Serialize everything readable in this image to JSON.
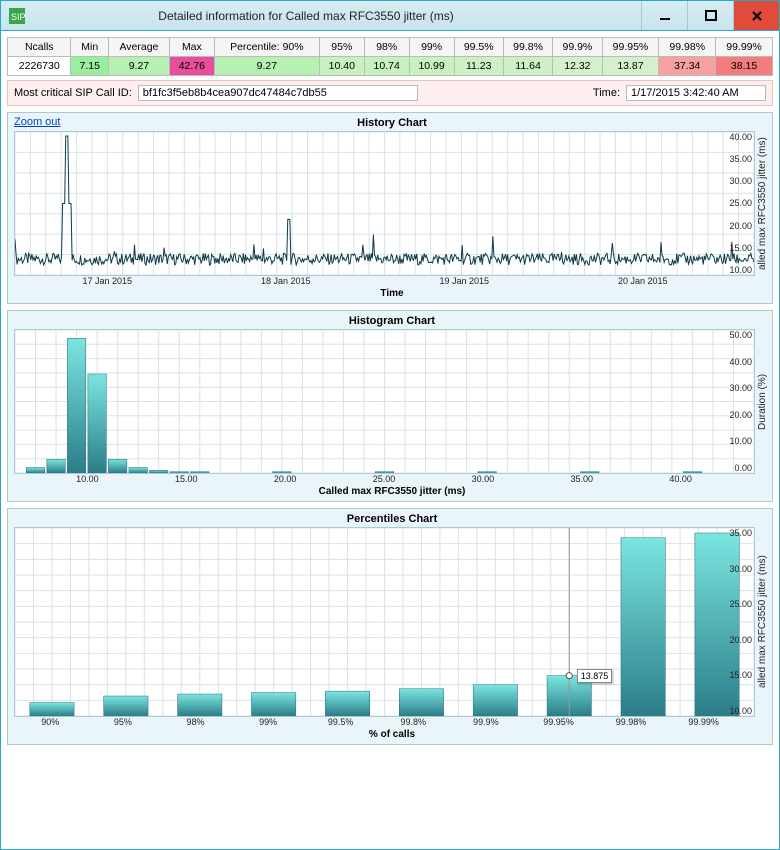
{
  "window": {
    "title": "Detailed information for Called max RFC3550 jitter (ms)"
  },
  "stats": {
    "headers": [
      "Ncalls",
      "Min",
      "Average",
      "Max",
      "Percentile: 90%",
      "95%",
      "98%",
      "99%",
      "99.5%",
      "99.8%",
      "99.9%",
      "99.95%",
      "99.98%",
      "99.99%"
    ],
    "values": [
      "2226730",
      "7.15",
      "9.27",
      "42.76",
      "9.27",
      "10.40",
      "10.74",
      "10.99",
      "11.23",
      "11.64",
      "12.32",
      "13.87",
      "37.34",
      "38.15"
    ],
    "cell_bg": [
      "#ffffff",
      "#9aef9e",
      "#b7f1b2",
      "#e84f9b",
      "#b7f1b2",
      "#c8f1c0",
      "#c8f1c0",
      "#c8f1c0",
      "#cdf1c5",
      "#cdf1c5",
      "#d4f1cc",
      "#d4f1cc",
      "#f7a1a1",
      "#f37d7d"
    ]
  },
  "info": {
    "call_id_label": "Most critical SIP Call ID:",
    "call_id": "bf1fc3f5eb8b4cea907dc47484c7db55",
    "time_label": "Time:",
    "time": "1/17/2015 3:42:40 AM"
  },
  "zoom_out": "Zoom out",
  "history": {
    "title": "History Chart",
    "xlabel": "Time",
    "ylabel": "alled max RFC3550 jitter (ms)",
    "xticks": [
      "17 Jan 2015",
      "18 Jan 2015",
      "19 Jan 2015",
      "20 Jan 2015"
    ],
    "yticks": [
      "40.00",
      "35.00",
      "30.00",
      "25.00",
      "20.00",
      "15.00",
      "10.00"
    ],
    "ymin": 7,
    "ymax": 43,
    "baseline": 11,
    "spike_x": 0.07,
    "spike_y": 42,
    "noise_amp": 3.0,
    "line_color": "#0d3b4a"
  },
  "histogram": {
    "title": "Histogram Chart",
    "xlabel": "Called max RFC3550 jitter (ms)",
    "ylabel": "Duration (%)",
    "xticks": [
      "10.00",
      "15.00",
      "20.00",
      "25.00",
      "30.00",
      "35.00",
      "40.00"
    ],
    "yticks": [
      "50.00",
      "40.00",
      "30.00",
      "20.00",
      "10.00",
      "0.00"
    ],
    "xmin": 7,
    "xmax": 43,
    "ymax": 52,
    "bins": [
      {
        "x": 8,
        "h": 2
      },
      {
        "x": 9,
        "h": 5
      },
      {
        "x": 10,
        "h": 49
      },
      {
        "x": 11,
        "h": 36
      },
      {
        "x": 12,
        "h": 5
      },
      {
        "x": 13,
        "h": 2
      },
      {
        "x": 14,
        "h": 1
      },
      {
        "x": 15,
        "h": 0.5
      },
      {
        "x": 16,
        "h": 0.5
      },
      {
        "x": 20,
        "h": 0.5
      },
      {
        "x": 25,
        "h": 0.5
      },
      {
        "x": 30,
        "h": 0.5
      },
      {
        "x": 35,
        "h": 0.5
      },
      {
        "x": 40,
        "h": 0.5
      }
    ],
    "bar_colors": {
      "top": "#7be6e0",
      "bottom": "#2b7d88"
    }
  },
  "percentiles": {
    "title": "Percentiles Chart",
    "xlabel": "% of calls",
    "ylabel": "alled max RFC3550 jitter (ms)",
    "xticks": [
      "90%",
      "95%",
      "98%",
      "99%",
      "99.5%",
      "99.8%",
      "99.9%",
      "99.95%",
      "99.98%",
      "99.99%"
    ],
    "yticks": [
      "35.00",
      "30.00",
      "25.00",
      "20.00",
      "15.00",
      "10.00"
    ],
    "ymin": 7,
    "ymax": 39,
    "values": [
      9.27,
      10.4,
      10.74,
      10.99,
      11.23,
      11.64,
      12.32,
      13.87,
      37.34,
      38.15
    ],
    "tooltip_index": 7,
    "tooltip_value": "13.875",
    "bar_colors": {
      "top": "#7be6e0",
      "bottom": "#2b7d88"
    }
  }
}
